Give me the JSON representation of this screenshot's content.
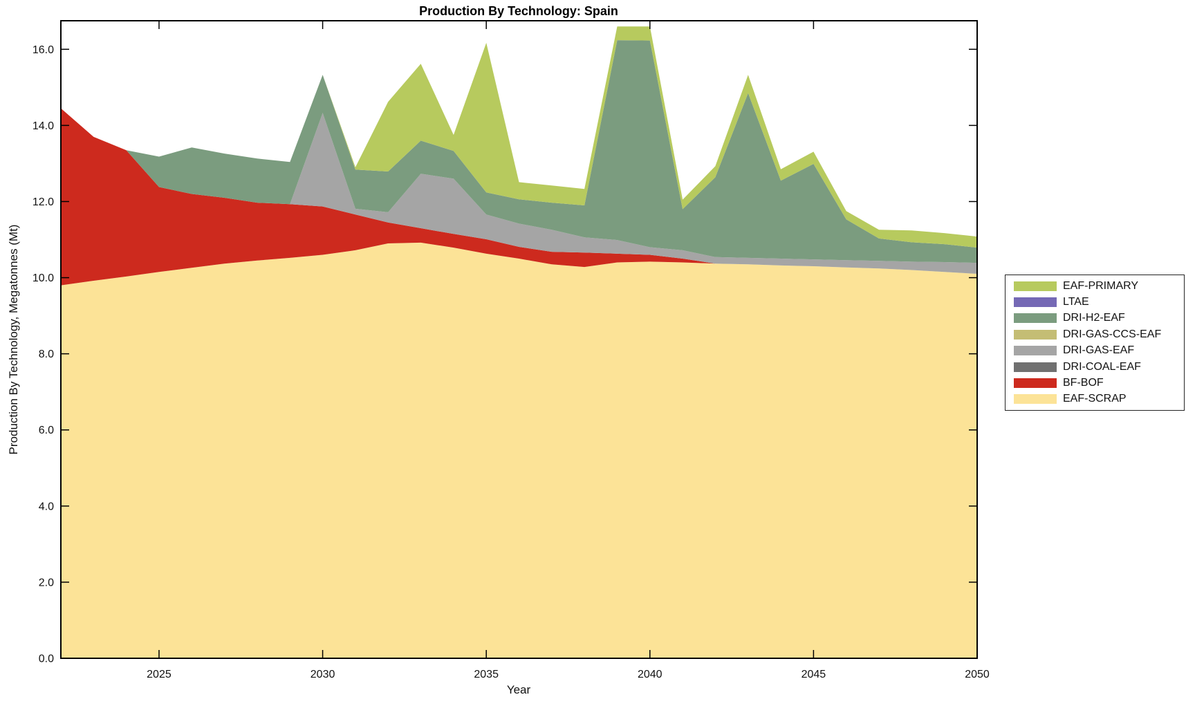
{
  "title": "Production By Technology: Spain",
  "axes": {
    "xlabel": "Year",
    "ylabel": "Production By Technology, Megatonnes (Mt)",
    "x_tick_values": [
      2025,
      2030,
      2035,
      2040,
      2045,
      2050
    ],
    "x_tick_labels": [
      "2025",
      "2030",
      "2035",
      "2040",
      "2045",
      "2050"
    ],
    "y_tick_values": [
      0,
      2,
      4,
      6,
      8,
      10,
      12,
      14,
      16
    ],
    "y_tick_labels": [
      "0.0",
      "2.0",
      "4.0",
      "6.0",
      "8.0",
      "10.0",
      "12.0",
      "14.0",
      "16.0"
    ]
  },
  "legend": {
    "position": "right-outside",
    "entries": [
      {
        "label": "EAF-PRIMARY",
        "color": "#b7ca5e"
      },
      {
        "label": "LTAE",
        "color": "#7569b5"
      },
      {
        "label": "DRI-H2-EAF",
        "color": "#7b9c7f"
      },
      {
        "label": "DRI-GAS-CCS-EAF",
        "color": "#c4bd74"
      },
      {
        "label": "DRI-GAS-EAF",
        "color": "#a5a5a5"
      },
      {
        "label": "DRI-COAL-EAF",
        "color": "#707070"
      },
      {
        "label": "BF-BOF",
        "color": "#cd2a1e"
      },
      {
        "label": "EAF-SCRAP",
        "color": "#fce397"
      }
    ]
  },
  "chart_data": {
    "type": "area",
    "stacked": true,
    "title": "Production By Technology: Spain",
    "xlabel": "Year",
    "ylabel": "Production By Technology, Megatonnes (Mt)",
    "xlim": [
      2022,
      2050
    ],
    "ylim": [
      0,
      16.75
    ],
    "grid": false,
    "legend_position": "right-outside",
    "x": [
      2022,
      2023,
      2024,
      2025,
      2026,
      2027,
      2028,
      2029,
      2030,
      2031,
      2032,
      2033,
      2034,
      2035,
      2036,
      2037,
      2038,
      2039,
      2040,
      2041,
      2042,
      2043,
      2044,
      2045,
      2046,
      2047,
      2048,
      2049,
      2050
    ],
    "series": [
      {
        "name": "EAF-SCRAP",
        "color": "#fce397",
        "values": [
          9.8,
          9.92,
          10.03,
          10.15,
          10.26,
          10.37,
          10.45,
          10.52,
          10.6,
          10.72,
          10.9,
          10.92,
          10.79,
          10.63,
          10.5,
          10.35,
          10.28,
          10.4,
          10.42,
          10.4,
          10.37,
          10.35,
          10.32,
          10.3,
          10.27,
          10.24,
          10.2,
          10.15,
          10.1
        ]
      },
      {
        "name": "BF-BOF",
        "color": "#cd2a1e",
        "values": [
          4.65,
          3.78,
          3.32,
          2.23,
          1.94,
          1.73,
          1.52,
          1.41,
          1.27,
          0.94,
          0.55,
          0.38,
          0.36,
          0.38,
          0.31,
          0.33,
          0.38,
          0.23,
          0.18,
          0.1,
          0,
          0,
          0,
          0,
          0,
          0,
          0,
          0,
          0
        ]
      },
      {
        "name": "DRI-COAL-EAF",
        "color": "#707070",
        "values": [
          0,
          0,
          0,
          0,
          0,
          0,
          0,
          0,
          0,
          0,
          0,
          0,
          0,
          0,
          0,
          0,
          0,
          0,
          0,
          0,
          0,
          0,
          0,
          0,
          0,
          0,
          0,
          0,
          0
        ]
      },
      {
        "name": "DRI-GAS-EAF",
        "color": "#a5a5a5",
        "values": [
          0,
          0,
          0,
          0,
          0,
          0,
          0,
          0,
          2.46,
          0.15,
          0.27,
          1.43,
          1.45,
          0.65,
          0.61,
          0.58,
          0.4,
          0.36,
          0.2,
          0.22,
          0.17,
          0.17,
          0.18,
          0.18,
          0.19,
          0.2,
          0.22,
          0.26,
          0.29
        ]
      },
      {
        "name": "DRI-GAS-CCS-EAF",
        "color": "#c4bd74",
        "values": [
          0,
          0,
          0,
          0,
          0,
          0,
          0,
          0,
          0,
          0,
          0,
          0,
          0,
          0,
          0,
          0,
          0,
          0,
          0,
          0,
          0,
          0,
          0,
          0,
          0,
          0,
          0,
          0,
          0
        ]
      },
      {
        "name": "DRI-H2-EAF",
        "color": "#7b9c7f",
        "values": [
          0,
          0,
          0,
          0.8,
          1.22,
          1.16,
          1.16,
          1.11,
          1.0,
          1.03,
          1.07,
          0.87,
          0.73,
          0.58,
          0.64,
          0.71,
          0.84,
          5.25,
          5.43,
          1.08,
          2.1,
          4.33,
          2.05,
          2.51,
          1.07,
          0.59,
          0.51,
          0.47,
          0.4
        ]
      },
      {
        "name": "LTAE",
        "color": "#7569b5",
        "values": [
          0,
          0,
          0,
          0,
          0,
          0,
          0,
          0,
          0,
          0,
          0,
          0,
          0,
          0,
          0,
          0,
          0,
          0,
          0,
          0,
          0,
          0,
          0,
          0,
          0,
          0,
          0,
          0,
          0
        ]
      },
      {
        "name": "EAF-PRIMARY",
        "color": "#b7ca5e",
        "values": [
          0,
          0,
          0,
          0,
          0,
          0,
          0,
          0,
          0,
          0.06,
          1.83,
          2.02,
          0.42,
          3.93,
          0.45,
          0.45,
          0.43,
          0.36,
          0.37,
          0.25,
          0.29,
          0.48,
          0.3,
          0.32,
          0.22,
          0.23,
          0.31,
          0.29,
          0.29
        ]
      }
    ]
  }
}
